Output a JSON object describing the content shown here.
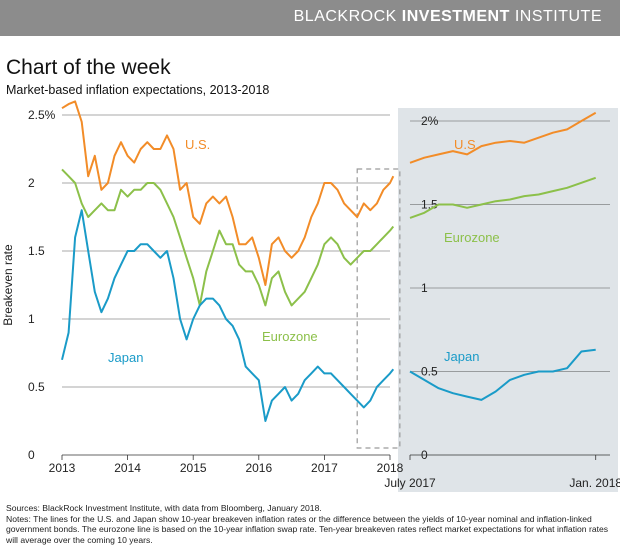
{
  "header": {
    "brand_light": "BLACKROCK ",
    "brand_bold": "INVESTMENT",
    "brand_tail": " INSTITUTE"
  },
  "title": "Chart of the week",
  "subtitle": "Market-based inflation expectations, 2013-2018",
  "sources": "Sources: BlackRock Investment Institute, with data from Bloomberg, January 2018.",
  "notes": "Notes: The lines for the U.S. and Japan show 10-year breakeven inflation rates or the difference between the yields of 10-year nominal and inflation-linked government bonds. The eurozone line is based on the 10-year inflation swap rate. Ten-year breakeven rates reflect market expectations for what inflation rates will average over the coming 10 years.",
  "colors": {
    "us": "#f28c28",
    "eurozone": "#8cc04a",
    "japan": "#1a9bc8",
    "panel": "#dfe4e8",
    "grid": "#555555"
  },
  "chart_data": [
    {
      "type": "line",
      "ylabel": "Breakeven rate",
      "ylim": [
        0,
        2.5
      ],
      "yticks": [
        "0",
        "0.5",
        "1",
        "1.5",
        "2",
        "2.5%"
      ],
      "xlim": [
        2013,
        2018
      ],
      "xticks": [
        "2013",
        "2014",
        "2015",
        "2016",
        "2017",
        "2018"
      ],
      "x": [
        2013.0,
        2013.1,
        2013.2,
        2013.3,
        2013.4,
        2013.5,
        2013.6,
        2013.7,
        2013.8,
        2013.9,
        2014.0,
        2014.1,
        2014.2,
        2014.3,
        2014.4,
        2014.5,
        2014.6,
        2014.7,
        2014.8,
        2014.9,
        2015.0,
        2015.1,
        2015.2,
        2015.3,
        2015.4,
        2015.5,
        2015.6,
        2015.7,
        2015.8,
        2015.9,
        2016.0,
        2016.1,
        2016.2,
        2016.3,
        2016.4,
        2016.5,
        2016.6,
        2016.7,
        2016.8,
        2016.9,
        2017.0,
        2017.1,
        2017.2,
        2017.3,
        2017.4,
        2017.5,
        2017.6,
        2017.7,
        2017.8,
        2017.9,
        2018.0,
        2018.05
      ],
      "series": [
        {
          "name": "U.S.",
          "values": [
            2.55,
            2.58,
            2.6,
            2.45,
            2.05,
            2.2,
            1.95,
            2.0,
            2.2,
            2.3,
            2.2,
            2.15,
            2.25,
            2.3,
            2.25,
            2.25,
            2.35,
            2.25,
            1.95,
            2.0,
            1.75,
            1.7,
            1.85,
            1.9,
            1.85,
            1.9,
            1.75,
            1.55,
            1.55,
            1.6,
            1.45,
            1.25,
            1.55,
            1.6,
            1.5,
            1.45,
            1.5,
            1.6,
            1.75,
            1.85,
            2.0,
            2.0,
            1.95,
            1.85,
            1.8,
            1.75,
            1.85,
            1.8,
            1.85,
            1.95,
            2.0,
            2.05
          ]
        },
        {
          "name": "Eurozone",
          "values": [
            2.1,
            2.05,
            2.0,
            1.85,
            1.75,
            1.8,
            1.85,
            1.8,
            1.8,
            1.95,
            1.9,
            1.95,
            1.95,
            2.0,
            2.0,
            1.95,
            1.85,
            1.75,
            1.6,
            1.45,
            1.3,
            1.1,
            1.35,
            1.5,
            1.65,
            1.55,
            1.55,
            1.4,
            1.35,
            1.35,
            1.25,
            1.1,
            1.3,
            1.35,
            1.2,
            1.1,
            1.15,
            1.2,
            1.3,
            1.4,
            1.55,
            1.6,
            1.55,
            1.45,
            1.4,
            1.45,
            1.5,
            1.5,
            1.55,
            1.6,
            1.65,
            1.68
          ]
        },
        {
          "name": "Japan",
          "values": [
            0.7,
            0.9,
            1.6,
            1.8,
            1.5,
            1.2,
            1.05,
            1.15,
            1.3,
            1.4,
            1.5,
            1.5,
            1.55,
            1.55,
            1.5,
            1.45,
            1.5,
            1.3,
            1.0,
            0.85,
            1.0,
            1.1,
            1.15,
            1.15,
            1.1,
            1.0,
            0.95,
            0.85,
            0.65,
            0.6,
            0.55,
            0.25,
            0.4,
            0.45,
            0.5,
            0.4,
            0.45,
            0.55,
            0.6,
            0.65,
            0.6,
            0.6,
            0.55,
            0.5,
            0.45,
            0.4,
            0.35,
            0.4,
            0.5,
            0.55,
            0.6,
            0.63
          ]
        }
      ]
    },
    {
      "type": "line",
      "ylim": [
        0,
        2
      ],
      "yticks": [
        "0",
        "0.5",
        "1",
        "1.5",
        "2%"
      ],
      "xlim": [
        0,
        7
      ],
      "xticks": [
        "July 2017",
        "Jan. 2018"
      ],
      "x": [
        0,
        0.5,
        1,
        1.5,
        2,
        2.5,
        3,
        3.5,
        4,
        4.5,
        5,
        5.5,
        6,
        6.5
      ],
      "series": [
        {
          "name": "U.S.",
          "values": [
            1.75,
            1.78,
            1.8,
            1.82,
            1.8,
            1.85,
            1.87,
            1.88,
            1.87,
            1.9,
            1.93,
            1.95,
            2.0,
            2.05
          ]
        },
        {
          "name": "Eurozone",
          "values": [
            1.42,
            1.45,
            1.5,
            1.5,
            1.48,
            1.5,
            1.52,
            1.53,
            1.55,
            1.56,
            1.58,
            1.6,
            1.63,
            1.66
          ]
        },
        {
          "name": "Japan",
          "values": [
            0.5,
            0.45,
            0.4,
            0.37,
            0.35,
            0.33,
            0.38,
            0.45,
            0.48,
            0.5,
            0.5,
            0.52,
            0.62,
            0.63
          ]
        }
      ]
    }
  ]
}
